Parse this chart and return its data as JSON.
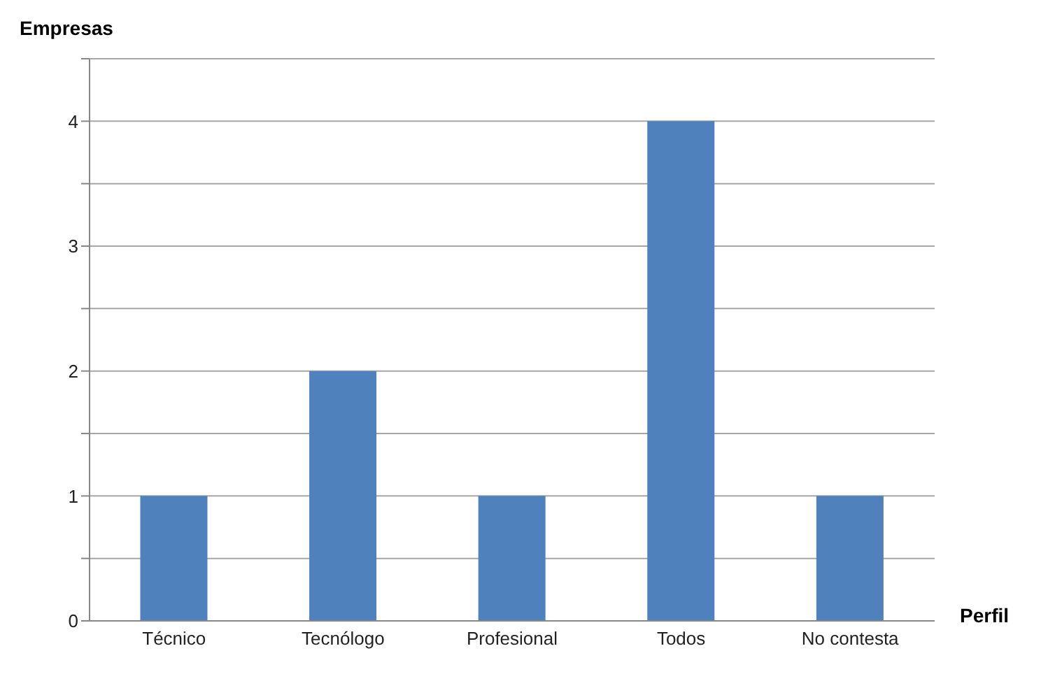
{
  "chart_data": {
    "type": "bar",
    "ylabel": "Empresas",
    "xlabel": "Perfil",
    "categories": [
      "Técnico",
      "Tecnólogo",
      "Profesional",
      "Todos",
      "No contesta"
    ],
    "values": [
      1,
      2,
      1,
      4,
      1
    ],
    "color": "#4f81bd",
    "ylim": [
      0,
      4.5
    ],
    "yticks": [
      0,
      {
        "value": 0.5,
        "label": null
      },
      1,
      {
        "value": 1.5,
        "label": null
      },
      2,
      {
        "value": 2.5,
        "label": null
      },
      3,
      {
        "value": 3.5,
        "label": null
      },
      4,
      {
        "value": 4.5,
        "label": null
      }
    ],
    "grid": "y"
  }
}
